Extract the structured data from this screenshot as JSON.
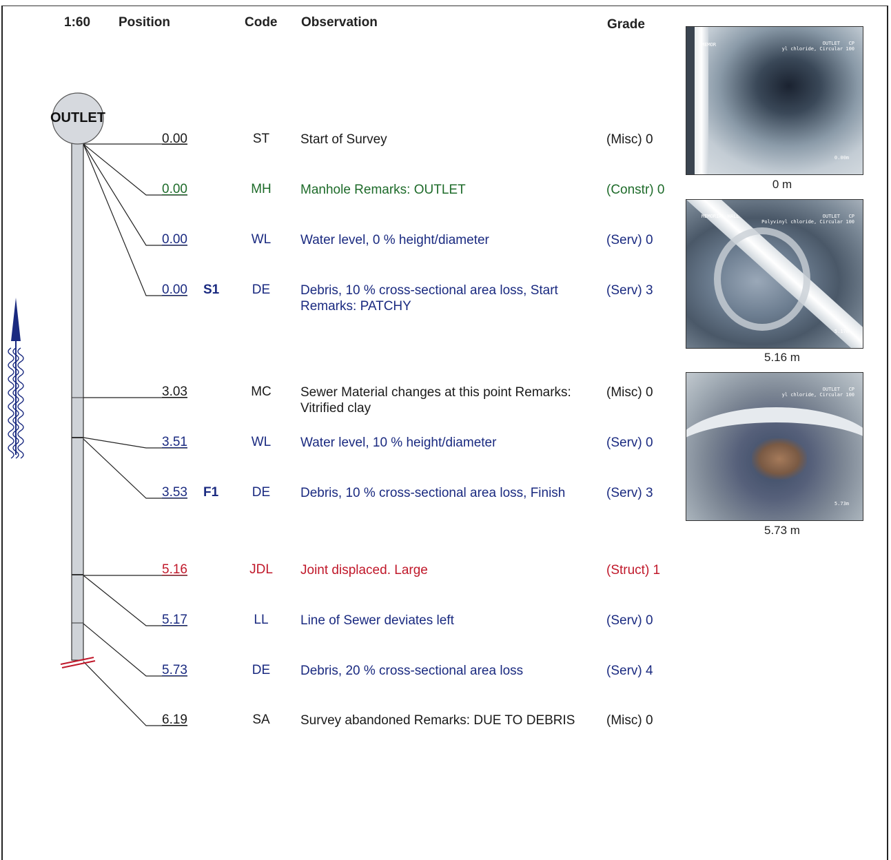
{
  "header": {
    "scale": "1:60",
    "position": "Position",
    "code": "Code",
    "observation": "Observation",
    "grade": "Grade"
  },
  "manhole": {
    "label": "OUTLET"
  },
  "rows": [
    {
      "position": "0.00",
      "flag": "",
      "code": "ST",
      "observation": "Start of Survey",
      "grade": "(Misc) 0",
      "color": "#1a1a1a"
    },
    {
      "position": "0.00",
      "flag": "",
      "code": "MH",
      "observation": "Manhole Remarks: OUTLET",
      "grade": "(Constr) 0",
      "color": "#1e6b2a"
    },
    {
      "position": "0.00",
      "flag": "",
      "code": "WL",
      "observation": "Water level, 0 % height/diameter",
      "grade": "(Serv) 0",
      "color": "#1a2a80"
    },
    {
      "position": "0.00",
      "flag": "S1",
      "code": "DE",
      "observation": "Debris, 10 % cross-sectional area loss, Start Remarks: PATCHY",
      "grade": "(Serv) 3",
      "color": "#1a2a80"
    },
    {
      "position": "3.03",
      "flag": "",
      "code": "MC",
      "observation": "Sewer Material changes at this point Remarks: Vitrified clay",
      "grade": "(Misc) 0",
      "color": "#1a1a1a"
    },
    {
      "position": "3.51",
      "flag": "",
      "code": "WL",
      "observation": "Water level, 10 % height/diameter",
      "grade": "(Serv) 0",
      "color": "#1a2a80"
    },
    {
      "position": "3.53",
      "flag": "F1",
      "code": "DE",
      "observation": "Debris, 10 % cross-sectional area loss, Finish",
      "grade": "(Serv) 3",
      "color": "#1a2a80"
    },
    {
      "position": "5.16",
      "flag": "",
      "code": "JDL",
      "observation": "Joint displaced. Large",
      "grade": "(Struct) 1",
      "color": "#c0182a"
    },
    {
      "position": "5.17",
      "flag": "",
      "code": "LL",
      "observation": "Line of Sewer deviates left",
      "grade": "(Serv) 0",
      "color": "#1a2a80"
    },
    {
      "position": "5.73",
      "flag": "",
      "code": "DE",
      "observation": "Debris, 20 % cross-sectional area loss",
      "grade": "(Serv) 4",
      "color": "#1a2a80"
    },
    {
      "position": "6.19",
      "flag": "",
      "code": "SA",
      "observation": "Survey abandoned Remarks: DUE TO DEBRIS",
      "grade": "(Misc) 0",
      "color": "#1a1a1a"
    }
  ],
  "photos": [
    {
      "caption": "0 m",
      "overlay_left": "MEMOR",
      "overlay_right": "OUTLET   CP\nyl chloride, Circular 100",
      "overlay_dist": "0.00m"
    },
    {
      "caption": "5.16 m",
      "overlay_left": "MEMORIAL HALL",
      "overlay_right": "OUTLET   CP\nPolyvinyl chloride, Circular 100",
      "overlay_dist": "5.17m"
    },
    {
      "caption": "5.73 m",
      "overlay_left": "",
      "overlay_right": "OUTLET   CP\nyl chloride, Circular 100",
      "overlay_dist": "5.73m"
    }
  ]
}
